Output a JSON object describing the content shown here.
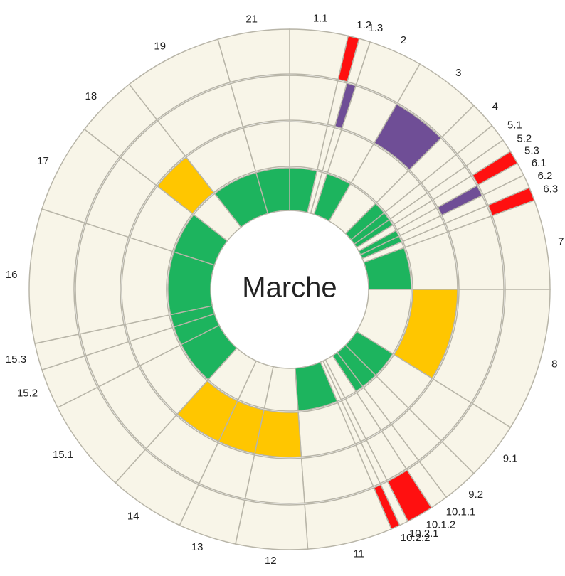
{
  "chart_data": {
    "type": "sunburst",
    "center_label": "Marche",
    "categories": [
      "1.1",
      "1.2",
      "1.3",
      "2",
      "3",
      "4",
      "5.1",
      "5.2",
      "5.3",
      "6.1",
      "6.2",
      "6.3",
      "7",
      "8",
      "9.1",
      "9.2",
      "10.1.1",
      "10.1.2",
      "10.2.1",
      "10.2.2",
      "11",
      "12",
      "13",
      "14",
      "15.1",
      "15.2",
      "15.3",
      "16",
      "17",
      "18",
      "19",
      "21"
    ],
    "values": [
      13,
      2.5,
      2.5,
      12,
      15,
      6,
      4,
      3,
      3,
      3,
      3,
      3,
      20,
      32,
      13,
      8,
      4,
      6,
      2,
      2,
      19,
      16,
      13,
      17,
      21,
      9,
      6,
      30,
      20,
      14,
      22,
      16
    ],
    "base_color": "#f8f5e8",
    "rings": [
      {
        "color": "#1db45e",
        "marked": [
          true,
          false,
          false,
          true,
          false,
          true,
          true,
          true,
          false,
          true,
          true,
          false,
          true,
          false,
          true,
          true,
          true,
          false,
          false,
          false,
          true,
          false,
          false,
          false,
          true,
          true,
          true,
          true,
          true,
          false,
          true,
          true
        ]
      },
      {
        "color": "#ffc600",
        "marked": [
          false,
          false,
          false,
          false,
          false,
          false,
          false,
          false,
          false,
          false,
          false,
          false,
          false,
          true,
          false,
          false,
          false,
          false,
          false,
          false,
          false,
          true,
          true,
          true,
          false,
          false,
          false,
          false,
          false,
          true,
          false,
          false
        ]
      },
      {
        "color": "#6f4e96",
        "marked": [
          false,
          false,
          true,
          false,
          true,
          false,
          false,
          false,
          false,
          true,
          false,
          false,
          false,
          false,
          false,
          false,
          false,
          false,
          false,
          false,
          false,
          false,
          false,
          false,
          false,
          false,
          false,
          false,
          false,
          false,
          false,
          false
        ]
      },
      {
        "color": "#ff1010",
        "marked": [
          false,
          true,
          false,
          false,
          false,
          false,
          false,
          false,
          true,
          false,
          false,
          true,
          false,
          false,
          false,
          false,
          false,
          true,
          false,
          true,
          false,
          false,
          false,
          false,
          false,
          false,
          false,
          false,
          false,
          false,
          false,
          false
        ]
      }
    ]
  }
}
